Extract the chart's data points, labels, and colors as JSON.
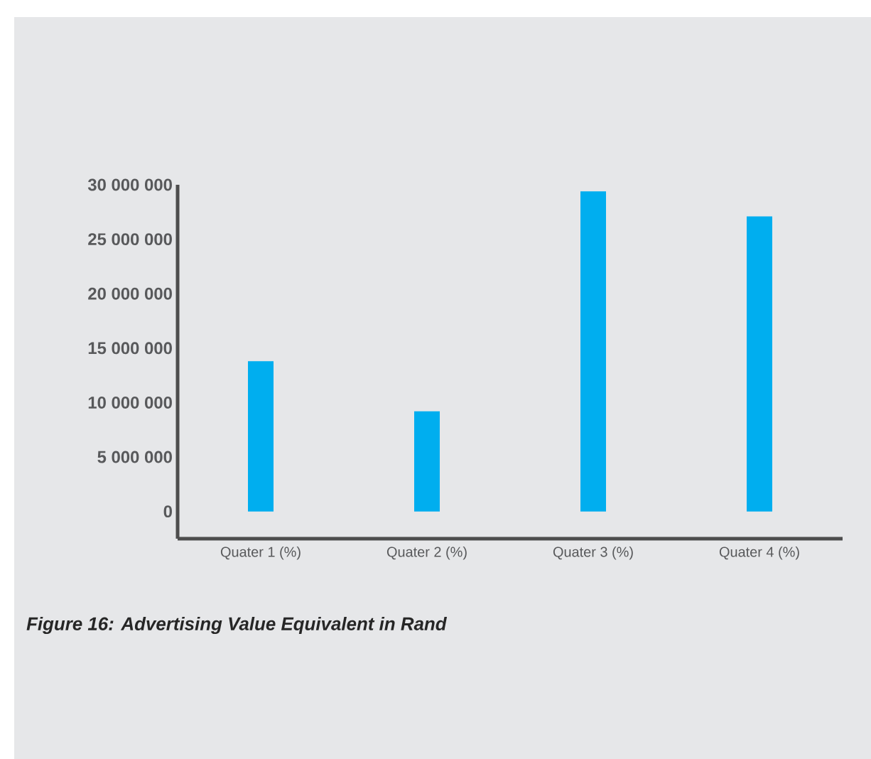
{
  "chart_data": {
    "type": "bar",
    "categories": [
      "Quater 1 (%)",
      "Quater 2 (%)",
      "Quater 3 (%)",
      "Quater 4 (%)"
    ],
    "values": [
      13800000,
      9200000,
      29400000,
      27100000
    ],
    "color": "#00aeef",
    "ylim": [
      -2500000,
      30000000
    ],
    "yticks": [
      {
        "value": 0,
        "label": "0"
      },
      {
        "value": 5000000,
        "label": "5 000 000"
      },
      {
        "value": 10000000,
        "label": "10 000 000"
      },
      {
        "value": 15000000,
        "label": "15 000 000"
      },
      {
        "value": 20000000,
        "label": "20 000 000"
      },
      {
        "value": 25000000,
        "label": "25 000 000"
      },
      {
        "value": 30000000,
        "label": "30 000 000"
      }
    ],
    "annotations": [
      "Figure 16: Advertising Value Equivalent in Rand"
    ]
  }
}
